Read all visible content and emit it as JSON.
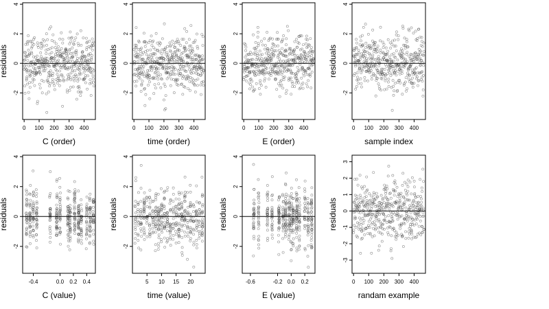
{
  "chart_data": [
    {
      "type": "scatter",
      "xlabel": "C (order)",
      "ylabel": "residuals",
      "xlim": [
        -10,
        475
      ],
      "ylim": [
        -3.8,
        4.1
      ],
      "xticks": [
        "0",
        "100",
        "200",
        "300",
        "400"
      ],
      "yticks": [
        "-2",
        "0",
        "2",
        "4"
      ],
      "hline": 0,
      "n_points": 450,
      "x_kind": "order"
    },
    {
      "type": "scatter",
      "xlabel": "time (order)",
      "ylabel": "residuals",
      "xlim": [
        -10,
        475
      ],
      "ylim": [
        -3.8,
        4.1
      ],
      "xticks": [
        "0",
        "100",
        "200",
        "300",
        "400"
      ],
      "yticks": [
        "-2",
        "0",
        "2",
        "4"
      ],
      "hline": 0,
      "n_points": 450,
      "x_kind": "order"
    },
    {
      "type": "scatter",
      "xlabel": "E (order)",
      "ylabel": "residuals",
      "xlim": [
        -10,
        475
      ],
      "ylim": [
        -3.8,
        4.1
      ],
      "xticks": [
        "0",
        "100",
        "200",
        "300",
        "400"
      ],
      "yticks": [
        "-2",
        "0",
        "2",
        "4"
      ],
      "hline": 0,
      "n_points": 450,
      "x_kind": "order"
    },
    {
      "type": "scatter",
      "xlabel": "sample index",
      "ylabel": "residuals",
      "xlim": [
        -10,
        475
      ],
      "ylim": [
        -3.8,
        4.1
      ],
      "xticks": [
        "0",
        "100",
        "200",
        "300",
        "400"
      ],
      "yticks": [
        "-2",
        "0",
        "2",
        "4"
      ],
      "hline": 0,
      "n_points": 450,
      "x_kind": "order"
    },
    {
      "type": "scatter",
      "xlabel": "C (value)",
      "ylabel": "residuals",
      "xlim": [
        -0.56,
        0.53
      ],
      "ylim": [
        -3.8,
        4.1
      ],
      "xticks": [
        "-0.4",
        "0.0",
        "0.2",
        "0.4"
      ],
      "yticks": [
        "-2",
        "0",
        "2",
        "4"
      ],
      "hline": 0,
      "n_points": 450,
      "x_kind": "levels",
      "levels": [
        -0.5,
        -0.45,
        -0.4,
        -0.35,
        -0.15,
        -0.05,
        0.0,
        0.12,
        0.15,
        0.22,
        0.28,
        0.32,
        0.4,
        0.45,
        0.5
      ]
    },
    {
      "type": "scatter",
      "xlabel": "time (value)",
      "ylabel": "residuals",
      "xlim": [
        0,
        25
      ],
      "ylim": [
        -3.8,
        4.1
      ],
      "xticks": [
        "5",
        "10",
        "15",
        "20"
      ],
      "yticks": [
        "-2",
        "0",
        "2",
        "4"
      ],
      "hline": 0,
      "n_points": 450,
      "x_kind": "levels",
      "levels": [
        1,
        2,
        3,
        4,
        5,
        6,
        7,
        8,
        9,
        10,
        11,
        12,
        13,
        14,
        15,
        16,
        17,
        18,
        19,
        20,
        21,
        22,
        23,
        24
      ]
    },
    {
      "type": "scatter",
      "xlabel": "E (value)",
      "ylabel": "residuals",
      "xlim": [
        -0.72,
        0.35
      ],
      "ylim": [
        -3.8,
        4.1
      ],
      "xticks": [
        "-0.6",
        "-0.2",
        "0.0",
        "0.2"
      ],
      "yticks": [
        "-2",
        "0",
        "2",
        "4"
      ],
      "hline": 0,
      "n_points": 450,
      "x_kind": "levels",
      "levels": [
        -0.55,
        -0.48,
        -0.35,
        -0.28,
        -0.18,
        -0.12,
        -0.08,
        -0.03,
        0.0,
        0.03,
        0.08,
        0.12,
        0.2,
        0.25,
        0.3
      ]
    },
    {
      "type": "scatter",
      "xlabel": "randam example",
      "ylabel": "residuals",
      "xlim": [
        -10,
        475
      ],
      "ylim": [
        -3.8,
        3.4
      ],
      "xticks": [
        "0",
        "100",
        "200",
        "300",
        "400"
      ],
      "yticks": [
        "-3",
        "-2",
        "-1",
        "0",
        "1",
        "2",
        "3"
      ],
      "hline": 0,
      "n_points": 450,
      "x_kind": "order"
    }
  ]
}
